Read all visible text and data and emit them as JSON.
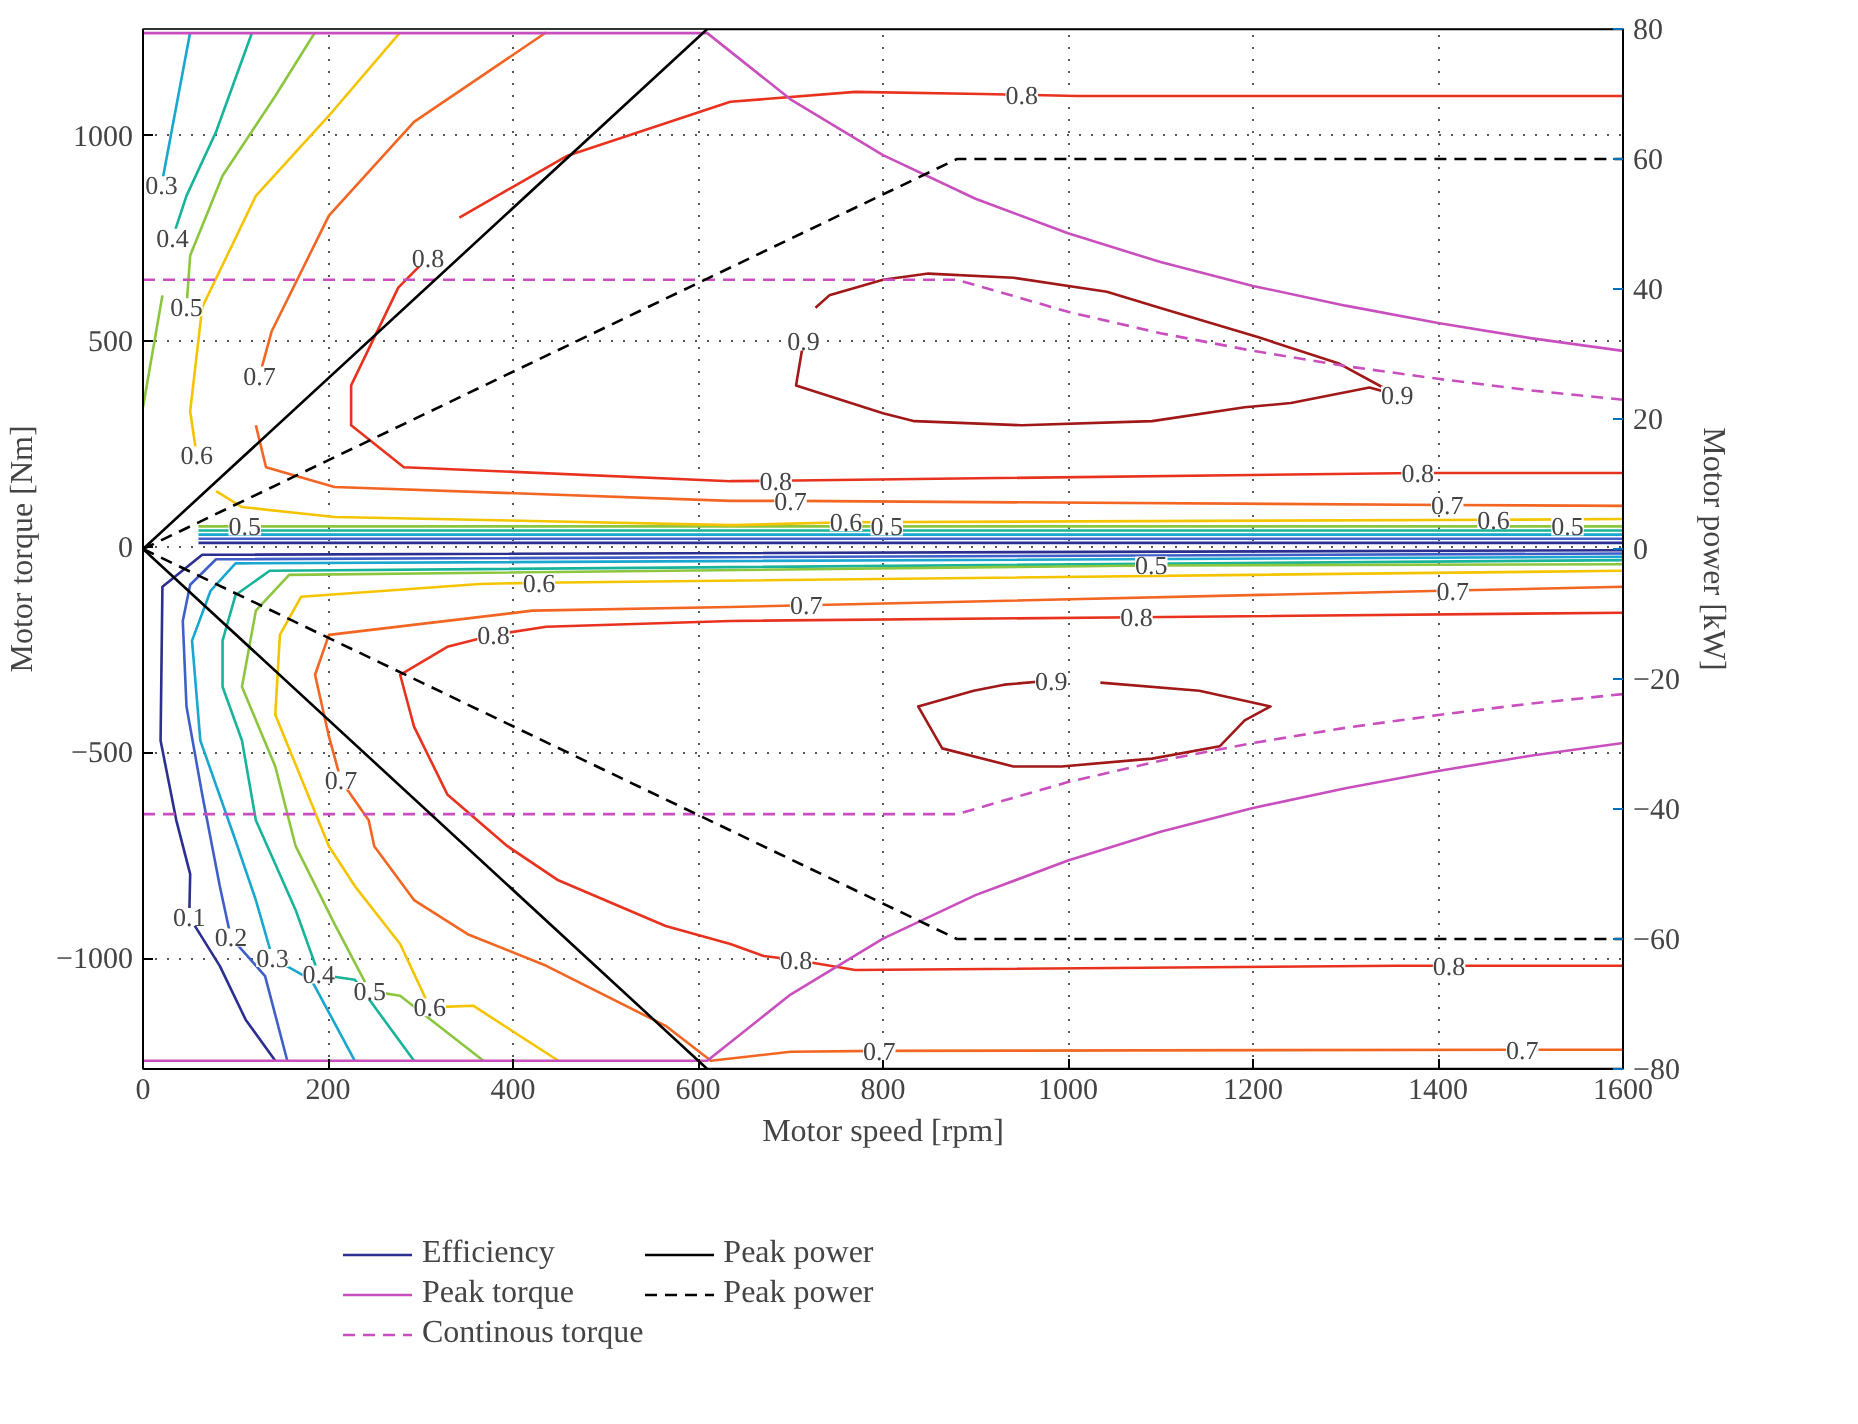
{
  "chart_data": {
    "type": "line",
    "xlabel": "Motor speed [rpm]",
    "ylabel": "Motor torque [Nm]",
    "y2label": "Motor power [kW]",
    "xlim": [
      0,
      1600
    ],
    "xticks": [
      0,
      200,
      400,
      600,
      800,
      1000,
      1200,
      1400,
      1600
    ],
    "ylim": [
      -1270,
      1260
    ],
    "yticks": [
      {
        "value": -1000,
        "label": "−1000"
      },
      {
        "value": -500,
        "label": "−500"
      },
      0,
      500,
      1000
    ],
    "y2lim": [
      -80,
      80
    ],
    "y2ticks": [
      {
        "value": -80,
        "label": "−80"
      },
      {
        "value": -60,
        "label": "−60"
      },
      {
        "value": -40,
        "label": "−40"
      },
      {
        "value": -20,
        "label": "−20"
      },
      0,
      20,
      40,
      60,
      80
    ],
    "grid": true,
    "legend": "bottom",
    "series": [
      {
        "name": "Efficiency",
        "color": "#2b2f8f",
        "x": [
          1600,
          64,
          21,
          19,
          36,
          51,
          50,
          83,
          111,
          143
        ],
        "values": [
          -8,
          -19,
          -97,
          -471,
          -665,
          -796,
          -900,
          -1019,
          -1150,
          -1250
        ]
      },
      {
        "color": "#2b2f8f",
        "x": [
          60,
          1600
        ],
        "values": [
          10,
          10
        ]
      },
      {
        "color": "#3f5fc8",
        "x": [
          1600,
          79,
          51,
          43,
          47,
          64,
          83,
          95,
          132,
          156
        ],
        "values": [
          -16,
          -30,
          -92,
          -180,
          -388,
          -602,
          -825,
          -950,
          -1044,
          -1250
        ]
      },
      {
        "color": "#3f5fc8",
        "x": [
          60,
          1600
        ],
        "values": [
          20,
          20
        ]
      },
      {
        "color": "#19a6cf",
        "x": [
          1600,
          100,
          73,
          53,
          62,
          100,
          122,
          140,
          182,
          229
        ],
        "values": [
          -24,
          -40,
          -107,
          -228,
          -471,
          -714,
          -859,
          -1000,
          -1053,
          -1250
        ]
      },
      {
        "color": "#19a6cf",
        "x": [
          60,
          1600
        ],
        "values": [
          30,
          30
        ]
      },
      {
        "color": "#19a6cf",
        "x": [
          20,
          32,
          51
        ],
        "values": [
          880,
          1024,
          1252
        ]
      },
      {
        "color": "#17b39a",
        "x": [
          1600,
          137,
          100,
          86,
          86,
          107,
          122,
          165,
          190,
          229,
          293
        ],
        "values": [
          -32,
          -58,
          -117,
          -228,
          -340,
          -471,
          -665,
          -883,
          -1040,
          -1053,
          -1250
        ]
      },
      {
        "color": "#17b39a",
        "x": [
          60,
          1600
        ],
        "values": [
          40,
          40
        ]
      },
      {
        "color": "#17b39a",
        "x": [
          32,
          47,
          79,
          118
        ],
        "values": [
          752,
          854,
          1010,
          1252
        ]
      },
      {
        "color": "#8cc63f",
        "x": [
          1600,
          1090,
          158,
          122,
          107,
          143,
          165,
          207,
          245,
          278,
          368
        ],
        "values": [
          -42,
          -45,
          -68,
          -155,
          -340,
          -534,
          -728,
          -917,
          -1080,
          -1092,
          -1250
        ]
      },
      {
        "color": "#8cc63f",
        "x": [
          60,
          110,
          804,
          1540,
          1600
        ],
        "values": [
          50,
          50,
          50,
          50,
          50
        ]
      },
      {
        "color": "#8cc63f",
        "x": [
          47,
          51,
          86,
          143,
          186
        ],
        "values": [
          583,
          709,
          903,
          1097,
          1252
        ]
      },
      {
        "color": "#8cc63f",
        "x": [
          0,
          21
        ],
        "values": [
          340,
          612
        ]
      },
      {
        "color": "#f5c400",
        "x": [
          1600,
          428,
          364,
          171,
          148,
          143,
          201,
          229,
          278,
          310,
          357,
          449
        ],
        "values": [
          -58,
          -87,
          -90,
          -121,
          -214,
          -408,
          -728,
          -825,
          -966,
          -1120,
          -1116,
          -1250
        ]
      },
      {
        "color": "#f5c400",
        "x": [
          79,
          107,
          207,
          637,
          760,
          1460,
          1600
        ],
        "values": [
          136,
          97,
          73,
          53,
          60,
          66,
          68
        ]
      },
      {
        "color": "#f5c400",
        "x": [
          58,
          51,
          64,
          122,
          201,
          278
        ],
        "values": [
          223,
          330,
          583,
          854,
          1049,
          1252
        ]
      },
      {
        "color": "#f26522",
        "x": [
          1600,
          1416,
          717,
          635,
          421,
          201,
          186,
          201,
          214,
          244,
          250,
          293,
          351,
          436,
          565,
          614,
          700,
          796,
          1491,
          1600
        ],
        "values": [
          -97,
          -106,
          -142,
          -146,
          -155,
          -214,
          -311,
          -461,
          -568,
          -665,
          -728,
          -859,
          -942,
          -1019,
          -1165,
          -1250,
          -1228,
          -1226,
          -1223,
          -1223
        ]
      },
      {
        "color": "#f26522",
        "x": [
          122,
          133,
          207,
          635,
          700,
          1410,
          1600
        ],
        "values": [
          296,
          194,
          146,
          112,
          112,
          102,
          100
        ]
      },
      {
        "color": "#f26522",
        "x": [
          126,
          139,
          201,
          293,
          436
        ],
        "values": [
          417,
          524,
          806,
          1034,
          1252
        ]
      },
      {
        "color": "#e8321e",
        "x": [
          1600,
          1074,
          635,
          436,
          379,
          329,
          278,
          293,
          329,
          394,
          449,
          565,
          635,
          671,
          706,
          770,
          1356,
          1412,
          1600
        ],
        "values": [
          -160,
          -171,
          -180,
          -194,
          -214,
          -243,
          -311,
          -437,
          -602,
          -728,
          -811,
          -922,
          -966,
          -995,
          -1005,
          -1029,
          -1019,
          -1019,
          -1019
        ]
      },
      {
        "color": "#e8321e",
        "x": [
          308,
          276,
          225,
          225,
          282,
          635,
          684,
          1378,
          1600
        ],
        "values": [
          704,
          631,
          393,
          296,
          194,
          160,
          161,
          180,
          180
        ]
      },
      {
        "color": "#e8321e",
        "x": [
          342,
          458,
          635,
          770,
          907,
          950,
          1010,
          1600
        ],
        "values": [
          801,
          951,
          1083,
          1107,
          1102,
          1100,
          1097,
          1097
        ]
      },
      {
        "color": "#a01818",
        "x": [
          727,
          742,
          800,
          849,
          941,
          1042,
          1099,
          1206,
          1292,
          1356,
          1326,
          1241,
          1191,
          1091,
          950,
          834,
          800,
          706,
          714
        ],
        "values": [
          582,
          612,
          650,
          665,
          655,
          621,
          582,
          510,
          447,
          369,
          388,
          350,
          340,
          306,
          296,
          306,
          325,
          393,
          500
        ]
      },
      {
        "color": "#a01818",
        "x": [
          1035,
          1142,
          1219,
          1191,
          1164,
          1091,
          993,
          941,
          864,
          838,
          898,
          931,
          982
        ],
        "values": [
          -330,
          -350,
          -388,
          -422,
          -485,
          -515,
          -534,
          -534,
          -490,
          -388,
          -350,
          -335,
          -325
        ]
      },
      {
        "name": "Peak torque",
        "color": "#c94fbf",
        "x": [
          0,
          610,
          700,
          800,
          900,
          1000,
          1100,
          1200,
          1300,
          1400,
          1500,
          1600
        ],
        "values": [
          1250,
          1250,
          1089,
          953,
          847,
          763,
          693,
          635,
          587,
          545,
          508,
          477
        ]
      },
      {
        "color": "#c94fbf",
        "x": [
          0,
          610,
          700,
          800,
          900,
          1000,
          1100,
          1200,
          1300,
          1400,
          1500,
          1600
        ],
        "values": [
          -1250,
          -1250,
          -1089,
          -953,
          -847,
          -763,
          -693,
          -635,
          -587,
          -545,
          -508,
          -477
        ]
      },
      {
        "name": "Continous torque",
        "color": "#c94fbf",
        "line_style": "dashed",
        "x": [
          0,
          880,
          1000,
          1100,
          1200,
          1300,
          1400,
          1500,
          1600
        ],
        "values": [
          650,
          650,
          572,
          520,
          477,
          440,
          409,
          381,
          358
        ]
      },
      {
        "color": "#c94fbf",
        "line_style": "dashed",
        "x": [
          0,
          880,
          1000,
          1100,
          1200,
          1300,
          1400,
          1500,
          1600
        ],
        "values": [
          -650,
          -650,
          -572,
          -520,
          -477,
          -440,
          -409,
          -381,
          -358
        ]
      },
      {
        "name": "Peak power",
        "color": "#000000",
        "axis": "y2",
        "x": [
          0,
          610,
          1600
        ],
        "values": [
          0,
          80,
          80
        ]
      },
      {
        "color": "#000000",
        "axis": "y2",
        "x": [
          0,
          610,
          1600
        ],
        "values": [
          0,
          -80,
          -80
        ]
      },
      {
        "name": "Peak power",
        "color": "#000000",
        "axis": "y2",
        "line_style": "dashed",
        "x": [
          0,
          880,
          1600
        ],
        "values": [
          0,
          60,
          60
        ]
      },
      {
        "color": "#000000",
        "axis": "y2",
        "line_style": "dashed",
        "x": [
          0,
          880,
          1600
        ],
        "values": [
          0,
          -60,
          -60
        ]
      }
    ],
    "annotations": [
      {
        "text": "0.3",
        "x": 20,
        "y": 880
      },
      {
        "text": "0.4",
        "x": 32,
        "y": 752
      },
      {
        "text": "0.5",
        "x": 47,
        "y": 583
      },
      {
        "text": "0.6",
        "x": 58,
        "y": 223
      },
      {
        "text": "0.7",
        "x": 126,
        "y": 417
      },
      {
        "text": "0.8",
        "x": 308,
        "y": 704
      },
      {
        "text": "0.8",
        "x": 950,
        "y": 1100
      },
      {
        "text": "0.9",
        "x": 714,
        "y": 500
      },
      {
        "text": "0.9",
        "x": 1356,
        "y": 369
      },
      {
        "text": "0.8",
        "x": 684,
        "y": 161
      },
      {
        "text": "0.8",
        "x": 1378,
        "y": 180
      },
      {
        "text": "0.7",
        "x": 700,
        "y": 112
      },
      {
        "text": "0.6",
        "x": 760,
        "y": 60
      },
      {
        "text": "0.7",
        "x": 1410,
        "y": 102
      },
      {
        "text": "0.6",
        "x": 1460,
        "y": 66
      },
      {
        "text": "0.5",
        "x": 110,
        "y": 50
      },
      {
        "text": "0.5",
        "x": 804,
        "y": 50
      },
      {
        "text": "0.5",
        "x": 1540,
        "y": 50
      },
      {
        "text": "0.6",
        "x": 428,
        "y": -87
      },
      {
        "text": "0.5",
        "x": 1090,
        "y": -45
      },
      {
        "text": "0.7",
        "x": 717,
        "y": -142
      },
      {
        "text": "0.7",
        "x": 1416,
        "y": -106
      },
      {
        "text": "0.8",
        "x": 1074,
        "y": -171
      },
      {
        "text": "0.8",
        "x": 379,
        "y": -214
      },
      {
        "text": "0.9",
        "x": 982,
        "y": -325
      },
      {
        "text": "0.7",
        "x": 214,
        "y": -568
      },
      {
        "text": "0.1",
        "x": 50,
        "y": -900
      },
      {
        "text": "0.2",
        "x": 95,
        "y": -950
      },
      {
        "text": "0.3",
        "x": 140,
        "y": -1000
      },
      {
        "text": "0.4",
        "x": 190,
        "y": -1040
      },
      {
        "text": "0.5",
        "x": 245,
        "y": -1080
      },
      {
        "text": "0.6",
        "x": 310,
        "y": -1120
      },
      {
        "text": "0.8",
        "x": 706,
        "y": -1005
      },
      {
        "text": "0.8",
        "x": 1412,
        "y": -1019
      },
      {
        "text": "0.7",
        "x": 796,
        "y": -1226
      },
      {
        "text": "0.7",
        "x": 1491,
        "y": -1223
      }
    ]
  }
}
